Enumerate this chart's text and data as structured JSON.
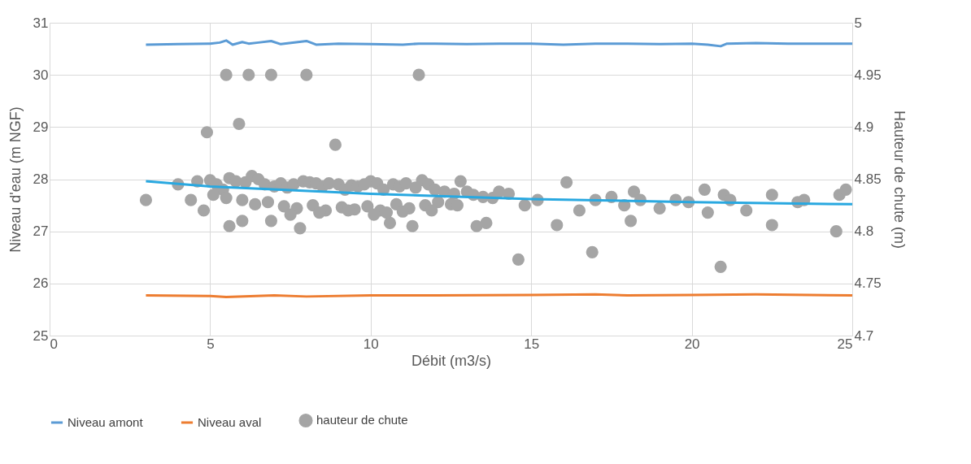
{
  "chart_data": {
    "type": "line",
    "xlabel": "Débit (m3/s)",
    "ylabel": "Niveau d'eau (m NGF)",
    "y2label": "Hauteur de chute (m)",
    "xlim": [
      0,
      25
    ],
    "xticks": [
      0,
      5,
      10,
      15,
      20,
      25
    ],
    "ylim": [
      25,
      31
    ],
    "yticks": [
      25,
      26,
      27,
      28,
      29,
      30,
      31
    ],
    "y2lim": [
      4.7,
      5
    ],
    "y2ticks": [
      4.7,
      4.75,
      4.8,
      4.85,
      4.9,
      4.95,
      5
    ],
    "grid": true,
    "legend": "bottom",
    "series": [
      {
        "name": "Niveau amont",
        "color": "#5b9bd5",
        "x": [
          3,
          4,
          5,
          5.3,
          5.5,
          5.7,
          6,
          6.2,
          6.5,
          6.9,
          7.2,
          8,
          8.3,
          9,
          10,
          11,
          11.5,
          12,
          13,
          14,
          15,
          16,
          17,
          18,
          19,
          20,
          20.5,
          20.9,
          21.1,
          22,
          23,
          24,
          25
        ],
        "values": [
          30.58,
          30.59,
          30.6,
          30.62,
          30.66,
          30.58,
          30.63,
          30.6,
          30.62,
          30.65,
          30.59,
          30.65,
          30.58,
          30.6,
          30.59,
          30.58,
          30.6,
          30.6,
          30.59,
          30.6,
          30.6,
          30.58,
          30.6,
          30.6,
          30.59,
          30.6,
          30.58,
          30.55,
          30.6,
          30.61,
          30.6,
          30.6,
          30.6
        ]
      },
      {
        "name": "Niveau aval",
        "color": "#ed7d31",
        "x": [
          3,
          5,
          5.5,
          7,
          8,
          10,
          12,
          15,
          17,
          18,
          20,
          22,
          25
        ],
        "values": [
          25.77,
          25.76,
          25.74,
          25.77,
          25.75,
          25.77,
          25.77,
          25.78,
          25.79,
          25.77,
          25.78,
          25.79,
          25.77
        ]
      },
      {
        "name": "hauteur de chute",
        "type": "scatter",
        "axis": "y2",
        "color": "#a5a5a5",
        "x": [
          3,
          4.9,
          5.9,
          8.9,
          5.5,
          6.2,
          6.9,
          8,
          11.5,
          14.6,
          16.9,
          20.9,
          24.5,
          5.6,
          6,
          6.9,
          7.8,
          10.6,
          11.3,
          13.3,
          13.6,
          15.8,
          18.1,
          22.5,
          4,
          4.4,
          4.8,
          4.6,
          5,
          5.2,
          5.4,
          5.6,
          5.8,
          6.1,
          6.3,
          6.5,
          6.7,
          7,
          7.2,
          7.4,
          7.6,
          7.9,
          8.1,
          8.3,
          8.5,
          8.7,
          9,
          9.2,
          9.4,
          9.6,
          9.8,
          10,
          10.2,
          10.4,
          10.7,
          10.9,
          11.1,
          11.4,
          11.6,
          11.8,
          12,
          12.3,
          12.6,
          12.8,
          13,
          13.2,
          13.5,
          13.8,
          14,
          14.3,
          5.1,
          5.5,
          6,
          6.4,
          6.8,
          7.3,
          7.7,
          8.2,
          8.6,
          9.1,
          9.5,
          9.9,
          10.3,
          10.8,
          11.2,
          11.7,
          12.1,
          12.5,
          7.5,
          8.4,
          9.3,
          10.1,
          10.5,
          11,
          11.9,
          12.7,
          14.8,
          15.2,
          16.1,
          16.5,
          17,
          17.5,
          17.9,
          18.2,
          18.4,
          19,
          19.5,
          19.9,
          20.4,
          20.5,
          21,
          21.2,
          21.7,
          22.5,
          23.3,
          23.5,
          24.6,
          24.8
        ],
        "values": [
          4.83,
          4.895,
          4.903,
          4.883,
          4.95,
          4.95,
          4.95,
          4.95,
          4.95,
          4.773,
          4.78,
          4.766,
          4.8,
          4.805,
          4.81,
          4.81,
          4.803,
          4.808,
          4.805,
          4.805,
          4.808,
          4.806,
          4.81,
          4.806,
          4.845,
          4.83,
          4.82,
          4.848,
          4.849,
          4.845,
          4.84,
          4.851,
          4.848,
          4.847,
          4.853,
          4.85,
          4.845,
          4.843,
          4.846,
          4.842,
          4.845,
          4.848,
          4.847,
          4.846,
          4.843,
          4.846,
          4.845,
          4.84,
          4.844,
          4.843,
          4.845,
          4.848,
          4.846,
          4.84,
          4.845,
          4.843,
          4.846,
          4.842,
          4.849,
          4.845,
          4.84,
          4.838,
          4.836,
          4.848,
          4.838,
          4.835,
          4.833,
          4.832,
          4.838,
          4.836,
          4.835,
          4.832,
          4.83,
          4.826,
          4.828,
          4.824,
          4.822,
          4.825,
          4.82,
          4.823,
          4.821,
          4.824,
          4.82,
          4.826,
          4.822,
          4.825,
          4.828,
          4.826,
          4.816,
          4.818,
          4.82,
          4.816,
          4.818,
          4.819,
          4.82,
          4.825,
          4.825,
          4.83,
          4.847,
          4.82,
          4.83,
          4.833,
          4.825,
          4.838,
          4.83,
          4.822,
          4.83,
          4.828,
          4.84,
          4.818,
          4.835,
          4.83,
          4.82,
          4.835,
          4.828,
          4.83,
          4.835,
          4.84
        ]
      },
      {
        "axis": "y2",
        "color": "#29a8e0",
        "x": [
          3,
          5,
          10,
          15,
          20,
          25
        ],
        "values": [
          4.848,
          4.843,
          4.836,
          4.831,
          4.828,
          4.826
        ]
      }
    ]
  }
}
